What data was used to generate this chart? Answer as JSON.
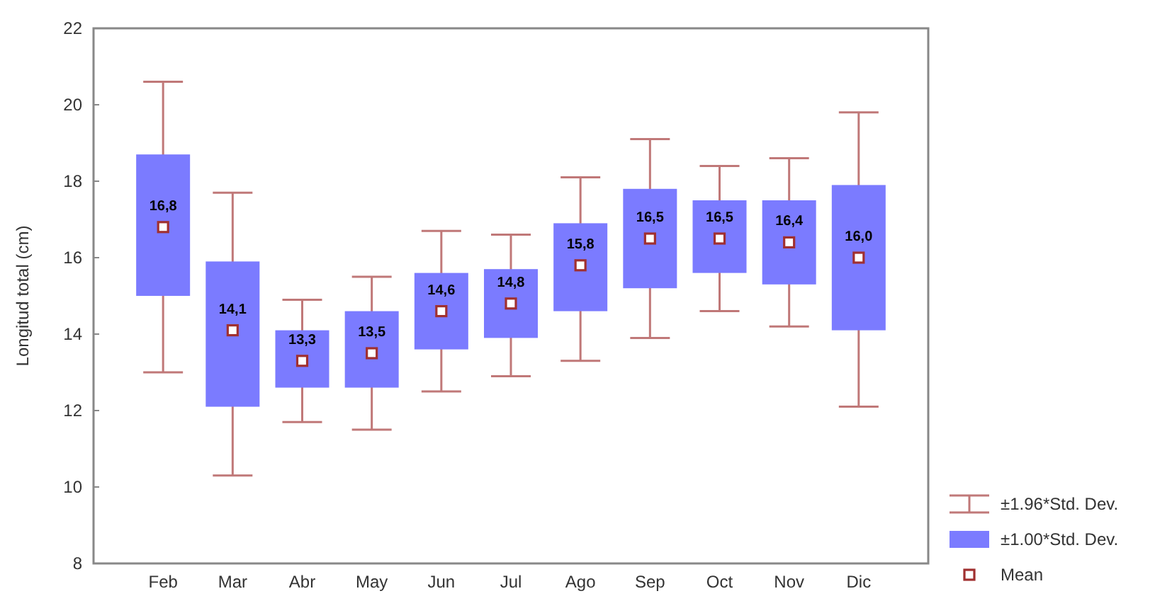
{
  "chart_data": {
    "type": "box",
    "ylabel": "Longitud total (cm)",
    "categories": [
      "Feb",
      "Mar",
      "Abr",
      "May",
      "Jun",
      "Jul",
      "Ago",
      "Sep",
      "Oct",
      "Nov",
      "Dic"
    ],
    "ylim": [
      8,
      22
    ],
    "yticks": [
      8,
      10,
      12,
      14,
      16,
      18,
      20,
      22
    ],
    "grid": false,
    "legend": "bottom right",
    "annotations": [
      "±1.96*Std. Dev."
    ],
    "series": [
      {
        "name": "±1.00*Std. Dev.",
        "color": "#7b7bff",
        "boxes": [
          {
            "low": 13.0,
            "q1": 15.0,
            "q3": 18.7,
            "high": 20.6
          },
          {
            "low": 10.3,
            "q1": 12.1,
            "q3": 15.9,
            "high": 17.7
          },
          {
            "low": 11.7,
            "q1": 12.6,
            "q3": 14.1,
            "high": 14.9
          },
          {
            "low": 11.5,
            "q1": 12.6,
            "q3": 14.6,
            "high": 15.5
          },
          {
            "low": 12.5,
            "q1": 13.6,
            "q3": 15.6,
            "high": 16.7
          },
          {
            "low": 12.9,
            "q1": 13.9,
            "q3": 15.7,
            "high": 16.6
          },
          {
            "low": 13.3,
            "q1": 14.6,
            "q3": 16.9,
            "high": 18.1
          },
          {
            "low": 13.9,
            "q1": 15.2,
            "q3": 17.8,
            "high": 19.1
          },
          {
            "low": 14.6,
            "q1": 15.6,
            "q3": 17.5,
            "high": 18.4
          },
          {
            "low": 14.2,
            "q1": 15.3,
            "q3": 17.5,
            "high": 18.6
          },
          {
            "low": 12.1,
            "q1": 14.1,
            "q3": 17.9,
            "high": 19.8
          }
        ]
      },
      {
        "name": "Mean",
        "type": "scatter",
        "marker": "square",
        "color": "#a03030",
        "values": [
          16.8,
          14.1,
          13.3,
          13.5,
          14.6,
          14.8,
          15.8,
          16.5,
          16.5,
          16.4,
          16.0
        ],
        "value_labels": [
          "16,8",
          "14,1",
          "13,3",
          "13,5",
          "14,6",
          "14,8",
          "15,8",
          "16,5",
          "16,5",
          "16,4",
          "16,0"
        ]
      }
    ]
  }
}
